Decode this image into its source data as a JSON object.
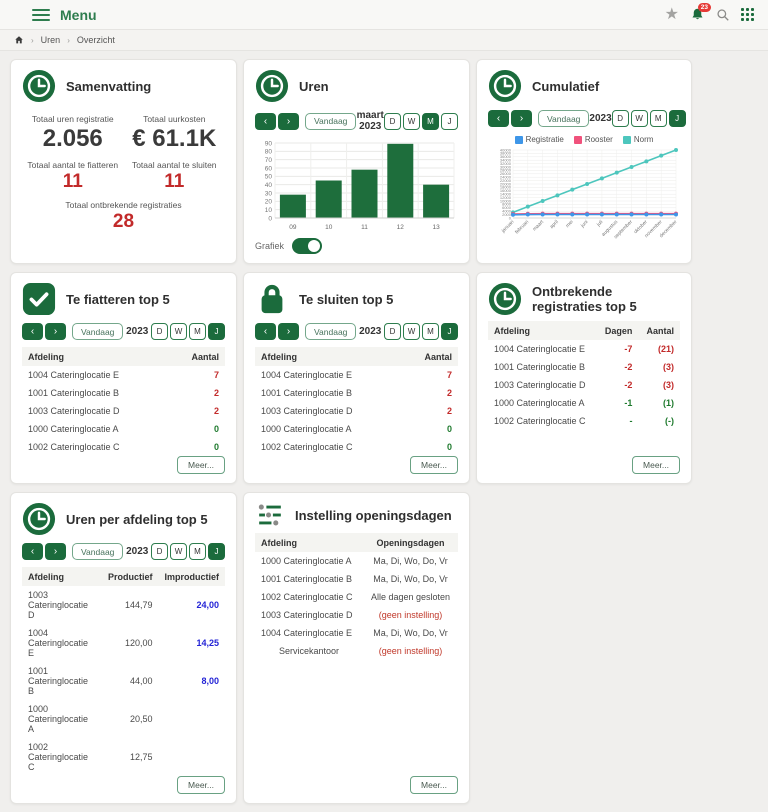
{
  "topbar": {
    "menu_label": "Menu",
    "notification_count": "23"
  },
  "breadcrumb": {
    "items": [
      "Uren",
      "Overzicht"
    ]
  },
  "controls": {
    "vandaag_label": "Vandaag",
    "period_buttons": [
      "D",
      "W",
      "M",
      "J"
    ],
    "meer_label": "Meer..."
  },
  "cards": {
    "samenvatting": {
      "title": "Samenvatting",
      "stats": [
        {
          "label": "Totaal uren registratie",
          "value": "2.056",
          "style": "dark"
        },
        {
          "label": "Totaal uurkosten",
          "value": "€ 61.1K",
          "style": "dark"
        },
        {
          "label": "Totaal aantal te fiatteren",
          "value": "11",
          "style": "red"
        },
        {
          "label": "Totaal aantal te sluiten",
          "value": "11",
          "style": "red"
        },
        {
          "label": "Totaal ontbrekende registraties",
          "value": "28",
          "style": "red",
          "span": true
        }
      ]
    },
    "uren": {
      "title": "Uren",
      "period_label": "maart 2023",
      "selected_period": "M",
      "grafiek_label": "Grafiek",
      "grafiek_on": true
    },
    "cumulatief": {
      "title": "Cumulatief",
      "period_label": "2023",
      "selected_period": "J"
    },
    "te_fiatteren": {
      "title": "Te fiatteren top 5",
      "period_label": "2023",
      "selected_period": "J",
      "table": {
        "headers": [
          {
            "label": "Afdeling",
            "align": "left"
          },
          {
            "label": "Aantal",
            "align": "right"
          }
        ],
        "rows": [
          [
            {
              "t": "1004 Cateringlocatie E"
            },
            {
              "t": "7",
              "c": "red"
            }
          ],
          [
            {
              "t": "1001 Cateringlocatie B"
            },
            {
              "t": "2",
              "c": "red"
            }
          ],
          [
            {
              "t": "1003 Cateringlocatie D"
            },
            {
              "t": "2",
              "c": "red"
            }
          ],
          [
            {
              "t": "1000 Cateringlocatie A"
            },
            {
              "t": "0",
              "c": "green"
            }
          ],
          [
            {
              "t": "1002 Cateringlocatie C"
            },
            {
              "t": "0",
              "c": "green"
            }
          ]
        ]
      }
    },
    "te_sluiten": {
      "title": "Te sluiten top 5",
      "period_label": "2023",
      "selected_period": "J",
      "table": {
        "headers": [
          {
            "label": "Afdeling",
            "align": "left"
          },
          {
            "label": "Aantal",
            "align": "right"
          }
        ],
        "rows": [
          [
            {
              "t": "1004 Cateringlocatie E"
            },
            {
              "t": "7",
              "c": "red"
            }
          ],
          [
            {
              "t": "1001 Cateringlocatie B"
            },
            {
              "t": "2",
              "c": "red"
            }
          ],
          [
            {
              "t": "1003 Cateringlocatie D"
            },
            {
              "t": "2",
              "c": "red"
            }
          ],
          [
            {
              "t": "1000 Cateringlocatie A"
            },
            {
              "t": "0",
              "c": "green"
            }
          ],
          [
            {
              "t": "1002 Cateringlocatie C"
            },
            {
              "t": "0",
              "c": "green"
            }
          ]
        ]
      }
    },
    "ontbrekende": {
      "title": "Ontbrekende registraties top 5",
      "table": {
        "headers": [
          {
            "label": "Afdeling",
            "align": "left"
          },
          {
            "label": "Dagen",
            "align": "right"
          },
          {
            "label": "Aantal",
            "align": "right"
          }
        ],
        "rows": [
          [
            {
              "t": "1004 Cateringlocatie E"
            },
            {
              "t": "-7",
              "c": "red"
            },
            {
              "t": "(21)",
              "c": "red"
            }
          ],
          [
            {
              "t": "1001 Cateringlocatie B"
            },
            {
              "t": "-2",
              "c": "red"
            },
            {
              "t": "(3)",
              "c": "red"
            }
          ],
          [
            {
              "t": "1003 Cateringlocatie D"
            },
            {
              "t": "-2",
              "c": "red"
            },
            {
              "t": "(3)",
              "c": "red"
            }
          ],
          [
            {
              "t": "1000 Cateringlocatie A"
            },
            {
              "t": "-1",
              "c": "green"
            },
            {
              "t": "(1)",
              "c": "green"
            }
          ],
          [
            {
              "t": "1002 Cateringlocatie C"
            },
            {
              "t": "-",
              "c": "green"
            },
            {
              "t": "(-)",
              "c": "green"
            }
          ]
        ]
      }
    },
    "uren_afdeling": {
      "title": "Uren per afdeling top 5",
      "period_label": "2023",
      "selected_period": "J",
      "table": {
        "headers": [
          {
            "label": "Afdeling",
            "align": "left"
          },
          {
            "label": "Productief",
            "align": "right"
          },
          {
            "label": "Improductief",
            "align": "right"
          }
        ],
        "rows": [
          [
            {
              "t": "1003 Cateringlocatie D"
            },
            {
              "t": "144,79"
            },
            {
              "t": "24,00",
              "c": "blue"
            }
          ],
          [
            {
              "t": "1004 Cateringlocatie E"
            },
            {
              "t": "120,00"
            },
            {
              "t": "14,25",
              "c": "blue"
            }
          ],
          [
            {
              "t": "1001 Cateringlocatie B"
            },
            {
              "t": "44,00"
            },
            {
              "t": "8,00",
              "c": "blue"
            }
          ],
          [
            {
              "t": "1000 Cateringlocatie A"
            },
            {
              "t": "20,50"
            },
            {
              "t": ""
            }
          ],
          [
            {
              "t": "1002 Cateringlocatie C"
            },
            {
              "t": "12,75"
            },
            {
              "t": ""
            }
          ]
        ]
      }
    },
    "instelling": {
      "title": "Instelling openingsdagen",
      "table": {
        "headers": [
          {
            "label": "Afdeling",
            "align": "left"
          },
          {
            "label": "Openingsdagen",
            "align": "center"
          }
        ],
        "rows": [
          [
            {
              "t": "1000 Cateringlocatie A"
            },
            {
              "t": "Ma, Di, Wo, Do, Vr"
            }
          ],
          [
            {
              "t": "1001 Cateringlocatie B"
            },
            {
              "t": "Ma, Di, Wo, Do, Vr"
            }
          ],
          [
            {
              "t": "1002 Cateringlocatie C"
            },
            {
              "t": "Alle dagen gesloten"
            }
          ],
          [
            {
              "t": "1003 Cateringlocatie D"
            },
            {
              "t": "(geen instelling)",
              "c": "redplain"
            }
          ],
          [
            {
              "t": "1004 Cateringlocatie E"
            },
            {
              "t": "Ma, Di, Wo, Do, Vr"
            }
          ],
          [
            {
              "t": "Servicekantoor",
              "a": "center"
            },
            {
              "t": "(geen instelling)",
              "c": "redplain"
            }
          ]
        ]
      }
    }
  },
  "chart_data": [
    {
      "card": "uren",
      "type": "bar",
      "title": "Uren maart 2023",
      "categories": [
        "09",
        "10",
        "11",
        "12",
        "13"
      ],
      "values": [
        28,
        45,
        58,
        89,
        40
      ],
      "xlabel": "",
      "ylabel": "",
      "ylim": [
        0,
        90
      ],
      "ytick_step": 10,
      "bar_color": "#1e6e3c",
      "grid": true
    },
    {
      "card": "cumulatief",
      "type": "line",
      "title": "Cumulatief 2023",
      "x": [
        "januari",
        "februari",
        "maart",
        "april",
        "mei",
        "juni",
        "juli",
        "augustus",
        "september",
        "oktober",
        "november",
        "december"
      ],
      "series": [
        {
          "name": "Registratie",
          "color": "#3e96e8",
          "values": [
            1900,
            2050,
            2056,
            2056,
            2056,
            2056,
            2056,
            2056,
            2056,
            2056,
            2056,
            2056
          ]
        },
        {
          "name": "Rooster",
          "color": "#f0527c",
          "values": [
            2350,
            2500,
            2550,
            2550,
            2550,
            2550,
            2550,
            2550,
            2550,
            2550,
            2550,
            2550
          ]
        },
        {
          "name": "Norm",
          "color": "#4dc6bd",
          "values": [
            3333,
            6667,
            10000,
            13333,
            16667,
            20000,
            23333,
            26667,
            30000,
            33333,
            36667,
            40000
          ]
        }
      ],
      "xlabel": "",
      "ylabel": "",
      "ylim": [
        0,
        40000
      ],
      "ytick_step": 2000,
      "legend_position": "top",
      "grid": true
    }
  ]
}
